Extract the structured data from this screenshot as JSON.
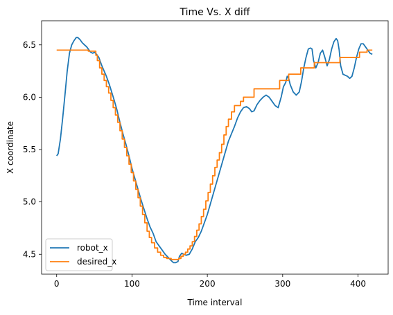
{
  "chart_data": {
    "type": "line",
    "title": "Time Vs. X diff",
    "xlabel": "Time interval",
    "ylabel": "X coordinate",
    "xlim": [
      -20,
      440
    ],
    "ylim": [
      4.31,
      6.73
    ],
    "xticks": [
      0,
      100,
      200,
      300,
      400
    ],
    "yticks": [
      4.5,
      5.0,
      5.5,
      6.0,
      6.5
    ],
    "ytick_labels": [
      "4.5",
      "5.0",
      "5.5",
      "6.0",
      "6.5"
    ],
    "grid": false,
    "legend": {
      "placement": "lower-left"
    },
    "series": [
      {
        "name": "robot_x",
        "color": "#1f77b4",
        "step": false,
        "points": [
          [
            0,
            5.44
          ],
          [
            2,
            5.46
          ],
          [
            5,
            5.6
          ],
          [
            8,
            5.8
          ],
          [
            11,
            6.02
          ],
          [
            14,
            6.25
          ],
          [
            17,
            6.42
          ],
          [
            20,
            6.5
          ],
          [
            23,
            6.54
          ],
          [
            26,
            6.57
          ],
          [
            28,
            6.57
          ],
          [
            31,
            6.55
          ],
          [
            34,
            6.52
          ],
          [
            37,
            6.5
          ],
          [
            40,
            6.48
          ],
          [
            42,
            6.46
          ],
          [
            45,
            6.43
          ],
          [
            48,
            6.42
          ],
          [
            50,
            6.43
          ],
          [
            53,
            6.41
          ],
          [
            56,
            6.38
          ],
          [
            60,
            6.3
          ],
          [
            63,
            6.25
          ],
          [
            66,
            6.2
          ],
          [
            70,
            6.12
          ],
          [
            73,
            6.05
          ],
          [
            76,
            5.98
          ],
          [
            80,
            5.88
          ],
          [
            84,
            5.76
          ],
          [
            88,
            5.65
          ],
          [
            92,
            5.55
          ],
          [
            96,
            5.44
          ],
          [
            100,
            5.32
          ],
          [
            104,
            5.22
          ],
          [
            108,
            5.12
          ],
          [
            112,
            5.02
          ],
          [
            116,
            4.93
          ],
          [
            120,
            4.84
          ],
          [
            124,
            4.76
          ],
          [
            128,
            4.7
          ],
          [
            132,
            4.62
          ],
          [
            136,
            4.58
          ],
          [
            140,
            4.54
          ],
          [
            144,
            4.5
          ],
          [
            148,
            4.47
          ],
          [
            152,
            4.44
          ],
          [
            155,
            4.42
          ],
          [
            158,
            4.42
          ],
          [
            161,
            4.43
          ],
          [
            163,
            4.48
          ],
          [
            166,
            4.51
          ],
          [
            169,
            4.5
          ],
          [
            172,
            4.49
          ],
          [
            176,
            4.5
          ],
          [
            180,
            4.55
          ],
          [
            184,
            4.62
          ],
          [
            188,
            4.66
          ],
          [
            192,
            4.72
          ],
          [
            196,
            4.8
          ],
          [
            200,
            4.88
          ],
          [
            204,
            4.98
          ],
          [
            208,
            5.08
          ],
          [
            212,
            5.18
          ],
          [
            216,
            5.28
          ],
          [
            220,
            5.38
          ],
          [
            224,
            5.48
          ],
          [
            228,
            5.58
          ],
          [
            232,
            5.65
          ],
          [
            236,
            5.72
          ],
          [
            240,
            5.8
          ],
          [
            244,
            5.86
          ],
          [
            248,
            5.9
          ],
          [
            252,
            5.91
          ],
          [
            256,
            5.89
          ],
          [
            259,
            5.86
          ],
          [
            262,
            5.87
          ],
          [
            266,
            5.93
          ],
          [
            270,
            5.97
          ],
          [
            274,
            6.0
          ],
          [
            278,
            6.02
          ],
          [
            282,
            6.0
          ],
          [
            286,
            5.96
          ],
          [
            290,
            5.92
          ],
          [
            294,
            5.9
          ],
          [
            298,
            6.0
          ],
          [
            301,
            6.1
          ],
          [
            304,
            6.14
          ],
          [
            306,
            6.2
          ],
          [
            308,
            6.18
          ],
          [
            310,
            6.12
          ],
          [
            314,
            6.05
          ],
          [
            318,
            6.02
          ],
          [
            322,
            6.05
          ],
          [
            325,
            6.15
          ],
          [
            328,
            6.28
          ],
          [
            331,
            6.38
          ],
          [
            334,
            6.46
          ],
          [
            337,
            6.47
          ],
          [
            339,
            6.46
          ],
          [
            341,
            6.35
          ],
          [
            344,
            6.28
          ],
          [
            347,
            6.33
          ],
          [
            350,
            6.42
          ],
          [
            353,
            6.45
          ],
          [
            356,
            6.38
          ],
          [
            359,
            6.3
          ],
          [
            362,
            6.36
          ],
          [
            365,
            6.46
          ],
          [
            368,
            6.53
          ],
          [
            371,
            6.56
          ],
          [
            373,
            6.54
          ],
          [
            375,
            6.45
          ],
          [
            377,
            6.3
          ],
          [
            380,
            6.22
          ],
          [
            383,
            6.21
          ],
          [
            386,
            6.2
          ],
          [
            389,
            6.18
          ],
          [
            392,
            6.2
          ],
          [
            395,
            6.28
          ],
          [
            398,
            6.38
          ],
          [
            401,
            6.46
          ],
          [
            404,
            6.51
          ],
          [
            407,
            6.51
          ],
          [
            410,
            6.48
          ],
          [
            413,
            6.45
          ],
          [
            416,
            6.42
          ],
          [
            419,
            6.41
          ]
        ]
      },
      {
        "name": "desired_x",
        "color": "#ff7f0e",
        "step": true,
        "points": [
          [
            0,
            6.45
          ],
          [
            38,
            6.45
          ],
          [
            42,
            6.44
          ],
          [
            50,
            6.44
          ],
          [
            52,
            6.4
          ],
          [
            54,
            6.35
          ],
          [
            57,
            6.28
          ],
          [
            60,
            6.22
          ],
          [
            63,
            6.16
          ],
          [
            66,
            6.1
          ],
          [
            69,
            6.04
          ],
          [
            72,
            5.97
          ],
          [
            75,
            5.9
          ],
          [
            78,
            5.83
          ],
          [
            81,
            5.76
          ],
          [
            84,
            5.68
          ],
          [
            87,
            5.6
          ],
          [
            90,
            5.52
          ],
          [
            93,
            5.44
          ],
          [
            96,
            5.36
          ],
          [
            99,
            5.28
          ],
          [
            102,
            5.2
          ],
          [
            105,
            5.12
          ],
          [
            108,
            5.04
          ],
          [
            111,
            4.96
          ],
          [
            114,
            4.88
          ],
          [
            117,
            4.8
          ],
          [
            120,
            4.72
          ],
          [
            123,
            4.66
          ],
          [
            126,
            4.61
          ],
          [
            130,
            4.56
          ],
          [
            134,
            4.52
          ],
          [
            138,
            4.49
          ],
          [
            142,
            4.47
          ],
          [
            146,
            4.46
          ],
          [
            152,
            4.45
          ],
          [
            162,
            4.46
          ],
          [
            165,
            4.48
          ],
          [
            168,
            4.5
          ],
          [
            171,
            4.52
          ],
          [
            174,
            4.55
          ],
          [
            177,
            4.58
          ],
          [
            180,
            4.62
          ],
          [
            183,
            4.67
          ],
          [
            186,
            4.73
          ],
          [
            189,
            4.79
          ],
          [
            192,
            4.86
          ],
          [
            195,
            4.93
          ],
          [
            198,
            5.01
          ],
          [
            201,
            5.09
          ],
          [
            204,
            5.17
          ],
          [
            207,
            5.25
          ],
          [
            210,
            5.33
          ],
          [
            213,
            5.4
          ],
          [
            216,
            5.47
          ],
          [
            219,
            5.55
          ],
          [
            222,
            5.64
          ],
          [
            225,
            5.72
          ],
          [
            228,
            5.79
          ],
          [
            232,
            5.86
          ],
          [
            236,
            5.92
          ],
          [
            240,
            5.92
          ],
          [
            244,
            5.96
          ],
          [
            248,
            6.0
          ],
          [
            262,
            6.08
          ],
          [
            296,
            6.16
          ],
          [
            308,
            6.22
          ],
          [
            324,
            6.28
          ],
          [
            342,
            6.33
          ],
          [
            376,
            6.38
          ],
          [
            402,
            6.43
          ],
          [
            412,
            6.45
          ],
          [
            419,
            6.45
          ]
        ]
      }
    ]
  }
}
